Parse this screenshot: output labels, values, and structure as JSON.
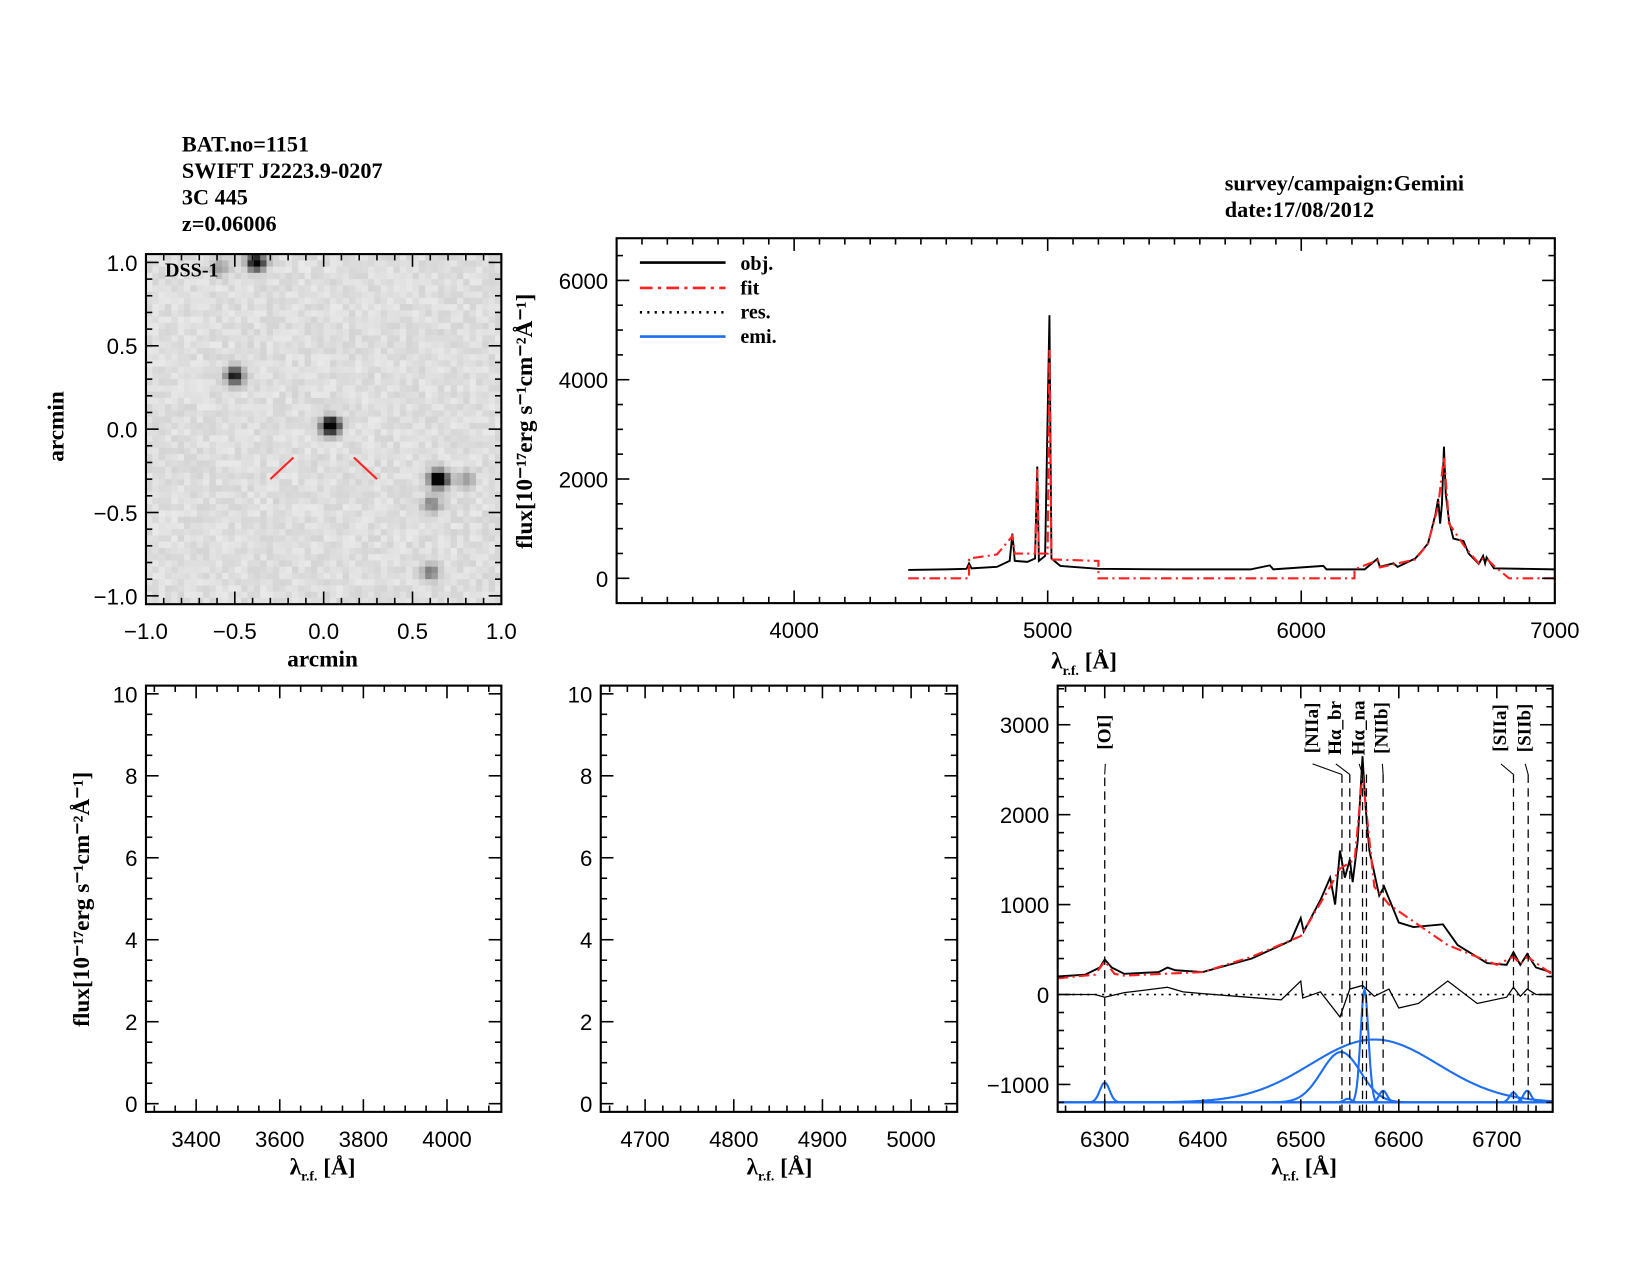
{
  "header": {
    "left_lines": [
      "BAT.no=1151",
      "SWIFT J2223.9-0207",
      "3C 445",
      "z=0.06006"
    ],
    "right_lines": [
      "survey/campaign:Gemini",
      "date:17/08/2012"
    ]
  },
  "labels": {
    "arcmin": "arcmin",
    "flux": "flux[10⁻¹⁷erg s⁻¹cm⁻²Å⁻¹]",
    "lambda": "λ",
    "lambda_sub": "r.f.",
    "lambda_unit": " [Å]",
    "image_tag": "DSS-1"
  },
  "legend": [
    {
      "label": "obj.",
      "color": "#000000",
      "style": "solid"
    },
    {
      "label": "fit",
      "color": "#ff2020",
      "style": "dash-dot"
    },
    {
      "label": "res.",
      "color": "#000000",
      "style": "dotted"
    },
    {
      "label": "emi.",
      "color": "#1e6ef0",
      "style": "solid"
    }
  ],
  "chart_data": [
    {
      "id": "image",
      "type": "image",
      "survey": "DSS-1",
      "xlabel": "arcmin",
      "ylabel": "arcmin",
      "xlim": [
        -1.0,
        1.0
      ],
      "ylim": [
        -1.05,
        1.05
      ],
      "xticks": [
        "-1.0",
        "-0.5",
        "0.0",
        "0.5",
        "1.0"
      ],
      "yticks": [
        "-1.0",
        "-0.5",
        "0.0",
        "0.5",
        "1.0"
      ],
      "colormap": "inverted-grey",
      "sources": [
        {
          "x": 0.04,
          "y": 0.02,
          "brightness": 1.0
        },
        {
          "x": 0.65,
          "y": -0.3,
          "brightness": 1.0
        },
        {
          "x": -0.5,
          "y": 0.32,
          "brightness": 0.65
        },
        {
          "x": -0.38,
          "y": 1.0,
          "brightness": 0.8
        },
        {
          "x": -0.58,
          "y": 0.97,
          "brightness": 0.2
        },
        {
          "x": 0.61,
          "y": -0.45,
          "brightness": 0.3
        },
        {
          "x": 0.6,
          "y": -0.86,
          "brightness": 0.3
        },
        {
          "x": 0.8,
          "y": -0.3,
          "brightness": 0.2
        }
      ],
      "marker_color": "#ff2020",
      "markers": [
        {
          "x1": -0.3,
          "y1": -0.3,
          "x2": -0.17,
          "y2": -0.17
        },
        {
          "x1": 0.17,
          "y1": -0.17,
          "x2": 0.3,
          "y2": -0.3
        }
      ]
    },
    {
      "id": "full",
      "type": "line",
      "xlabel": "λr.f. [Å]",
      "ylabel": "flux[10⁻¹⁷erg s⁻¹cm⁻²Å⁻¹]",
      "xlim": [
        3300,
        7000
      ],
      "ylim": [
        -500,
        6850
      ],
      "xticks": [
        "4000",
        "5000",
        "6000",
        "7000"
      ],
      "yticks": [
        "0",
        "2000",
        "4000",
        "6000"
      ],
      "legend": "top-left",
      "series": [
        {
          "name": "obj.",
          "points": [
            [
              4450,
              170
            ],
            [
              4600,
              180
            ],
            [
              4680,
              190
            ],
            [
              4690,
              300
            ],
            [
              4700,
              200
            ],
            [
              4800,
              230
            ],
            [
              4850,
              350
            ],
            [
              4861,
              900
            ],
            [
              4870,
              350
            ],
            [
              4920,
              330
            ],
            [
              4950,
              400
            ],
            [
              4959,
              2250
            ],
            [
              4965,
              350
            ],
            [
              4990,
              450
            ],
            [
              5007,
              5300
            ],
            [
              5015,
              400
            ],
            [
              5050,
              250
            ],
            [
              5200,
              190
            ],
            [
              5500,
              180
            ],
            [
              5800,
              180
            ],
            [
              5876,
              260
            ],
            [
              5890,
              180
            ],
            [
              6087,
              250
            ],
            [
              6100,
              180
            ],
            [
              6250,
              180
            ],
            [
              6300,
              390
            ],
            [
              6310,
              230
            ],
            [
              6364,
              300
            ],
            [
              6380,
              230
            ],
            [
              6450,
              400
            ],
            [
              6500,
              700
            ],
            [
              6530,
              1300
            ],
            [
              6540,
              1600
            ],
            [
              6548,
              1100
            ],
            [
              6555,
              1500
            ],
            [
              6563,
              2650
            ],
            [
              6570,
              1700
            ],
            [
              6583,
              1150
            ],
            [
              6600,
              800
            ],
            [
              6640,
              750
            ],
            [
              6660,
              500
            ],
            [
              6700,
              290
            ],
            [
              6717,
              450
            ],
            [
              6725,
              300
            ],
            [
              6731,
              420
            ],
            [
              6760,
              200
            ],
            [
              7000,
              180
            ]
          ]
        },
        {
          "name": "fit",
          "points": [
            [
              4450,
              0
            ],
            [
              4690,
              0
            ],
            [
              4690,
              400
            ],
            [
              4800,
              480
            ],
            [
              4861,
              850
            ],
            [
              4870,
              500
            ],
            [
              4950,
              500
            ],
            [
              4959,
              2200
            ],
            [
              4965,
              500
            ],
            [
              5000,
              500
            ],
            [
              5007,
              4600
            ],
            [
              5015,
              380
            ],
            [
              5200,
              350
            ],
            [
              5200,
              0
            ],
            [
              6210,
              0
            ],
            [
              6210,
              180
            ],
            [
              6300,
              360
            ],
            [
              6310,
              220
            ],
            [
              6450,
              380
            ],
            [
              6500,
              700
            ],
            [
              6540,
              1450
            ],
            [
              6563,
              2450
            ],
            [
              6583,
              1100
            ],
            [
              6650,
              600
            ],
            [
              6700,
              300
            ],
            [
              6717,
              400
            ],
            [
              6731,
              400
            ],
            [
              6760,
              250
            ],
            [
              6820,
              0
            ],
            [
              7000,
              0
            ]
          ]
        }
      ]
    },
    {
      "id": "blue",
      "type": "line",
      "xlabel": "λr.f. [Å]",
      "ylabel": "flux[10⁻¹⁷erg s⁻¹cm⁻²Å⁻¹]",
      "xlim": [
        3280,
        4130
      ],
      "ylim": [
        -0.2,
        10.2
      ],
      "xticks": [
        "3400",
        "3600",
        "3800",
        "4000"
      ],
      "yticks": [
        "0",
        "2",
        "4",
        "6",
        "8",
        "10"
      ],
      "series": []
    },
    {
      "id": "hbeta",
      "type": "line",
      "xlabel": "λr.f. [Å]",
      "xlim": [
        4650,
        5052
      ],
      "ylim": [
        -0.2,
        10.2
      ],
      "xticks": [
        "4700",
        "4800",
        "4900",
        "5000"
      ],
      "yticks": [
        "0",
        "2",
        "4",
        "6",
        "8",
        "10"
      ],
      "series": []
    },
    {
      "id": "halpha",
      "type": "line",
      "xlabel": "λr.f. [Å]",
      "xlim": [
        6252,
        6757
      ],
      "ylim": [
        -1305,
        3435
      ],
      "xticks": [
        "6300",
        "6400",
        "6500",
        "6600",
        "6700"
      ],
      "yticks": [
        "-1000",
        "0",
        "1000",
        "2000",
        "3000"
      ],
      "series": [
        {
          "name": "obj.",
          "points": [
            [
              6252,
              200
            ],
            [
              6280,
              220
            ],
            [
              6295,
              300
            ],
            [
              6300,
              390
            ],
            [
              6307,
              300
            ],
            [
              6320,
              230
            ],
            [
              6355,
              250
            ],
            [
              6364,
              300
            ],
            [
              6372,
              270
            ],
            [
              6400,
              250
            ],
            [
              6450,
              400
            ],
            [
              6490,
              600
            ],
            [
              6500,
              850
            ],
            [
              6503,
              700
            ],
            [
              6520,
              1050
            ],
            [
              6530,
              1300
            ],
            [
              6535,
              1000
            ],
            [
              6540,
              1600
            ],
            [
              6545,
              1300
            ],
            [
              6550,
              1500
            ],
            [
              6553,
              1250
            ],
            [
              6558,
              1700
            ],
            [
              6563,
              2650
            ],
            [
              6566,
              2100
            ],
            [
              6570,
              1600
            ],
            [
              6580,
              1100
            ],
            [
              6585,
              1200
            ],
            [
              6600,
              800
            ],
            [
              6615,
              750
            ],
            [
              6645,
              780
            ],
            [
              6660,
              550
            ],
            [
              6690,
              350
            ],
            [
              6710,
              330
            ],
            [
              6717,
              470
            ],
            [
              6724,
              330
            ],
            [
              6731,
              450
            ],
            [
              6740,
              300
            ],
            [
              6755,
              250
            ]
          ]
        },
        {
          "name": "fit",
          "points": [
            [
              6252,
              180
            ],
            [
              6290,
              220
            ],
            [
              6300,
              370
            ],
            [
              6310,
              230
            ],
            [
              6320,
              210
            ],
            [
              6400,
              250
            ],
            [
              6450,
              420
            ],
            [
              6500,
              650
            ],
            [
              6530,
              1200
            ],
            [
              6540,
              1400
            ],
            [
              6555,
              1500
            ],
            [
              6563,
              2450
            ],
            [
              6575,
              1200
            ],
            [
              6590,
              1000
            ],
            [
              6650,
              550
            ],
            [
              6700,
              330
            ],
            [
              6717,
              420
            ],
            [
              6724,
              340
            ],
            [
              6731,
              420
            ],
            [
              6757,
              220
            ]
          ]
        },
        {
          "name": "res.",
          "points": [
            [
              6252,
              0
            ],
            [
              6290,
              0
            ],
            [
              6300,
              -30
            ],
            [
              6320,
              20
            ],
            [
              6364,
              80
            ],
            [
              6380,
              30
            ],
            [
              6400,
              10
            ],
            [
              6480,
              -60
            ],
            [
              6500,
              150
            ],
            [
              6502,
              -40
            ],
            [
              6520,
              30
            ],
            [
              6540,
              -250
            ],
            [
              6550,
              60
            ],
            [
              6563,
              100
            ],
            [
              6575,
              -20
            ],
            [
              6590,
              60
            ],
            [
              6600,
              -150
            ],
            [
              6620,
              -100
            ],
            [
              6650,
              150
            ],
            [
              6680,
              -100
            ],
            [
              6710,
              -30
            ],
            [
              6717,
              80
            ],
            [
              6724,
              -20
            ],
            [
              6731,
              60
            ],
            [
              6740,
              0
            ],
            [
              6757,
              0
            ]
          ]
        }
      ],
      "emission_baseline": -1200,
      "emission_components": [
        {
          "center": 6300,
          "amplitude": 220,
          "sigma": 5
        },
        {
          "center": 6575,
          "amplitude": 700,
          "sigma": 65
        },
        {
          "center": 6541,
          "amplitude": 560,
          "sigma": 20
        },
        {
          "center": 6565,
          "amplitude": 1250,
          "sigma": 4
        },
        {
          "center": 6548,
          "amplitude": 40,
          "sigma": 4
        },
        {
          "center": 6584,
          "amplitude": 130,
          "sigma": 4
        },
        {
          "center": 6717,
          "amplitude": 110,
          "sigma": 4
        },
        {
          "center": 6731,
          "amplitude": 130,
          "sigma": 4
        }
      ],
      "line_markers": [
        {
          "label": "[OI]",
          "x": 6300
        },
        {
          "label": "[NIIa]",
          "x": 6542
        },
        {
          "label": "Hα_br",
          "x": 6550
        },
        {
          "label": "Hα_na",
          "x": 6563
        },
        {
          "label": "",
          "x": 6567
        },
        {
          "label": "[NIIb]",
          "x": 6584
        },
        {
          "label": "[SIIa]",
          "x": 6717
        },
        {
          "label": "[SIIb]",
          "x": 6732
        }
      ]
    }
  ]
}
